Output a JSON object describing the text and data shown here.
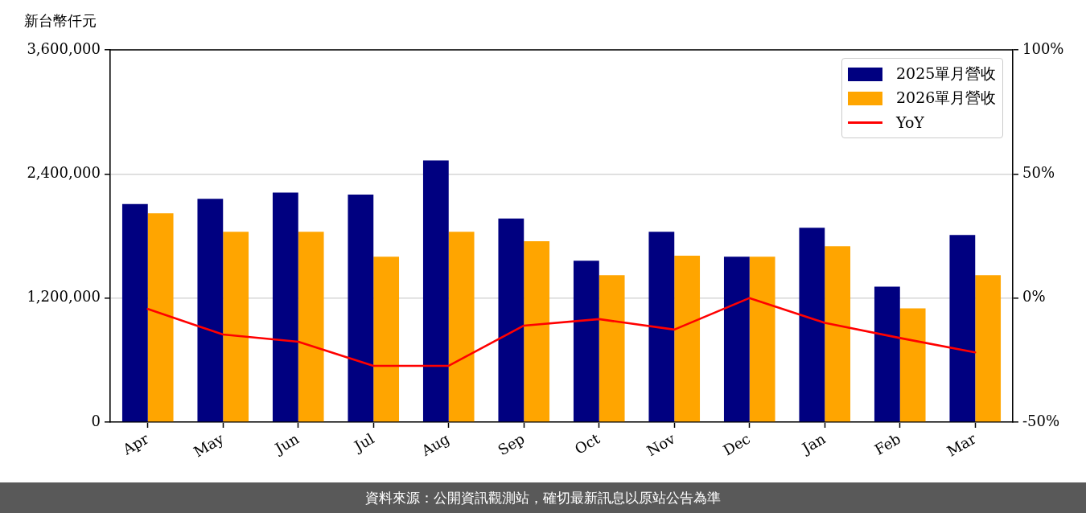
{
  "chart_data": {
    "type": "bar",
    "ylabel": "新台幣仟元",
    "annotations": [
      "資料來源：公開資訊觀測站，確切最新訊息以原站公告為準"
    ],
    "categories": [
      "Apr",
      "May",
      "Jun",
      "Jul",
      "Aug",
      "Sep",
      "Oct",
      "Nov",
      "Dec",
      "Jan",
      "Feb",
      "Mar"
    ],
    "series": [
      {
        "name": "2025單月營收",
        "color": "#000080",
        "values": [
          2110000,
          2160000,
          2220000,
          2200000,
          2530000,
          1970000,
          1560000,
          1840000,
          1600000,
          1880000,
          1310000,
          1810000
        ]
      },
      {
        "name": "2026單月營收",
        "color": "#ffa500",
        "values": [
          2020000,
          1840000,
          1840000,
          1600000,
          1840000,
          1750000,
          1420000,
          1610000,
          1600000,
          1700000,
          1100000,
          1420000
        ]
      },
      {
        "name": "YoY",
        "type": "line",
        "axis": "y2",
        "color": "#ff0000",
        "values": [
          -4.4,
          -14.7,
          -17.6,
          -27.3,
          -27.3,
          -11.1,
          -8.5,
          -12.7,
          0,
          -10.0,
          -16.1,
          -21.9
        ]
      }
    ],
    "ylim": [
      0,
      3600000
    ],
    "yticks": [
      0,
      {
        "value": 1200000,
        "label": "1,200,000"
      },
      {
        "value": 2400000,
        "label": "2,400,000"
      },
      {
        "value": 3600000,
        "label": "3,600,000"
      }
    ],
    "y2lim": [
      -50,
      100
    ],
    "y2ticks": [
      {
        "value": -50,
        "label": "-50%"
      },
      {
        "value": 0,
        "label": "0%"
      },
      {
        "value": 50,
        "label": "50%"
      },
      {
        "value": 100,
        "label": "100%"
      }
    ],
    "grid": "y",
    "legend": "top right",
    "marker": "none",
    "line_style": "solid"
  }
}
